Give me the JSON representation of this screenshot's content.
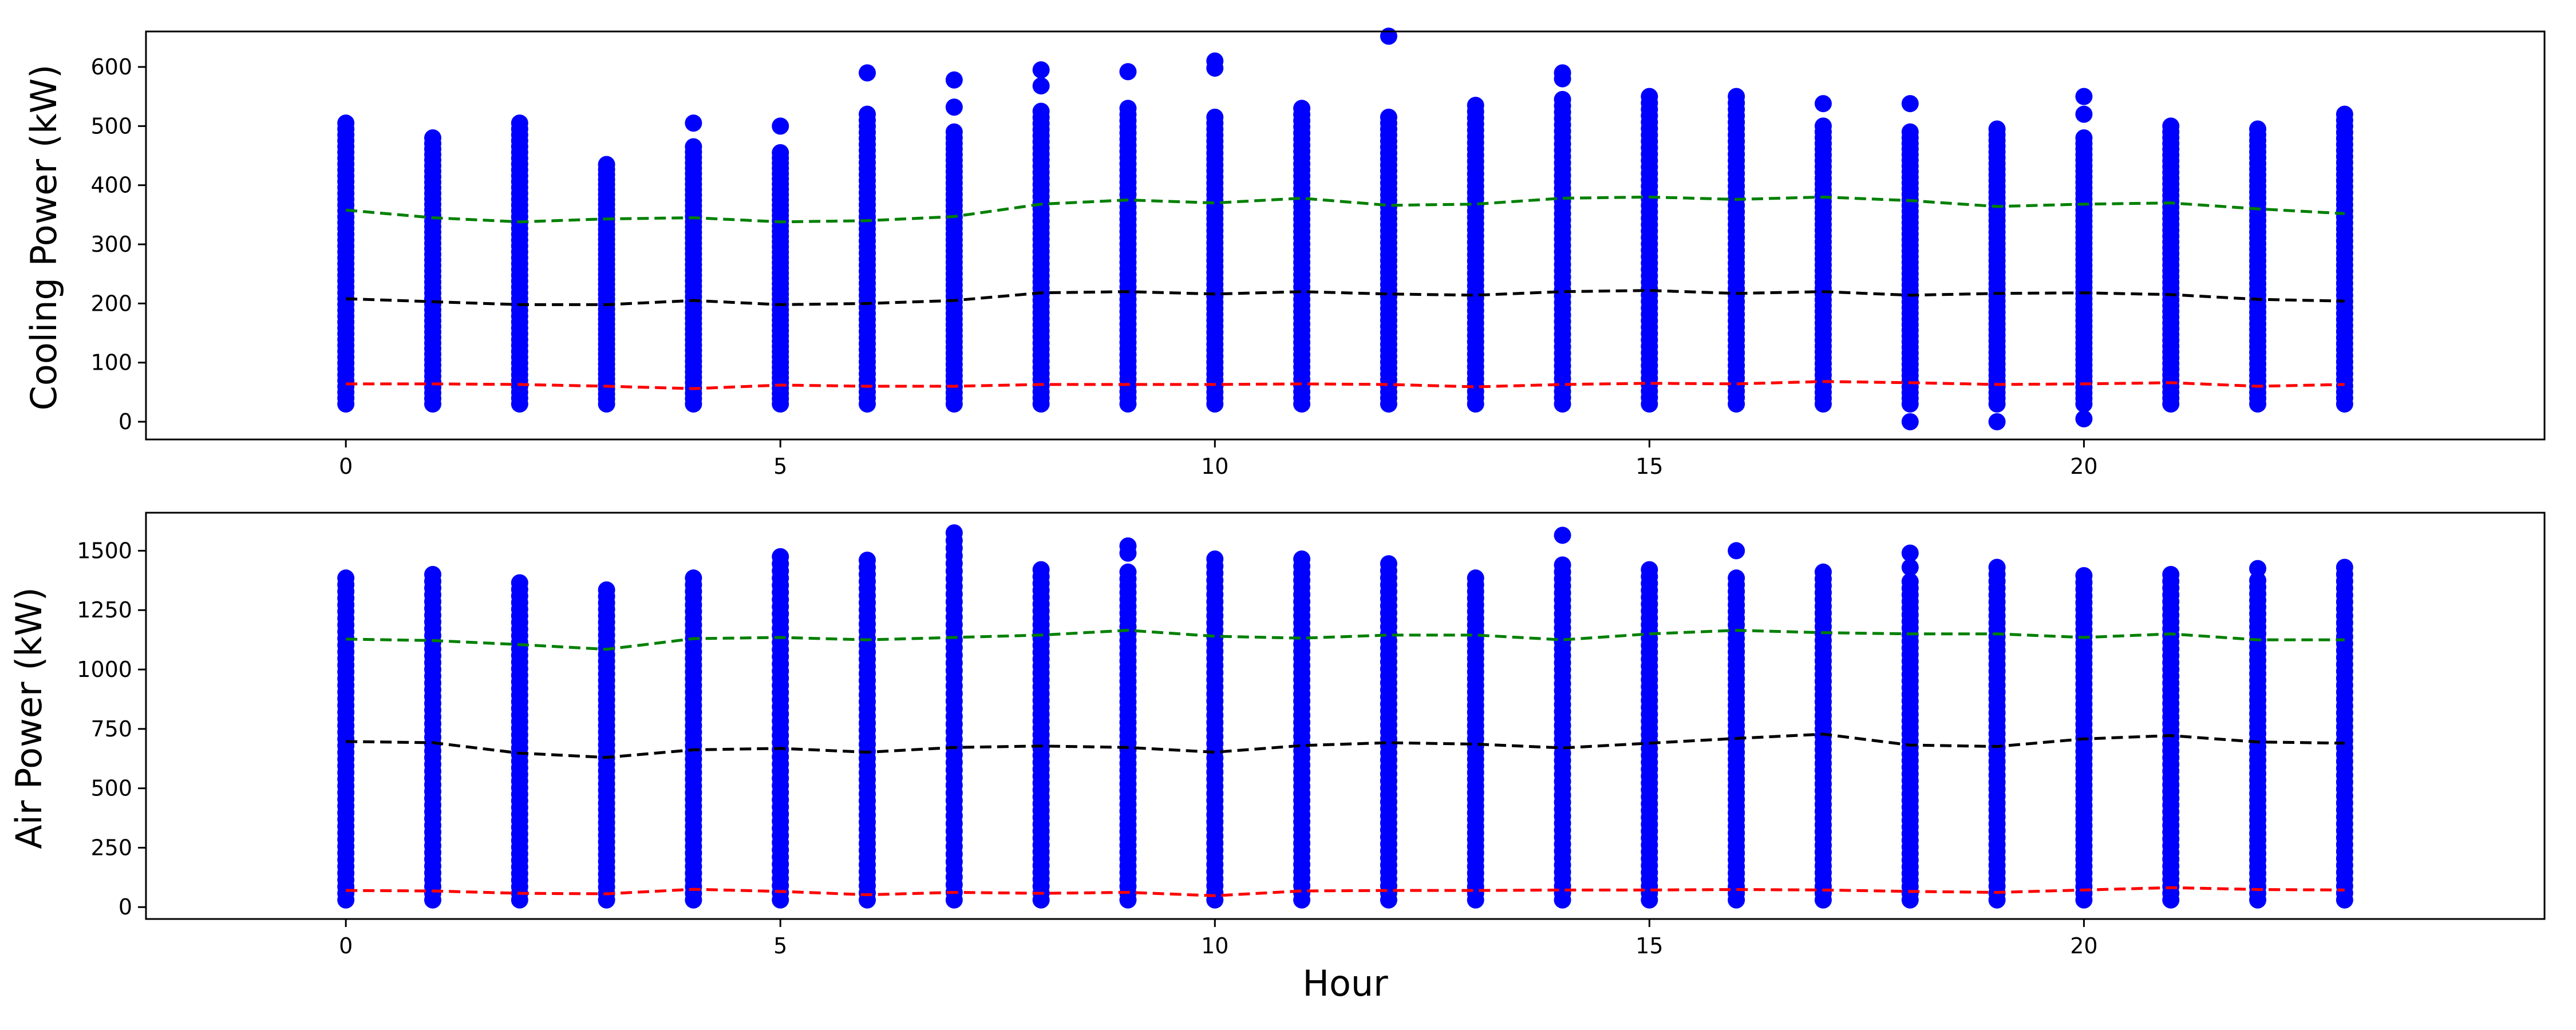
{
  "colors": {
    "points": "#0000ff",
    "upper_line": "#008000",
    "mean_line": "#000000",
    "lower_line": "#ff0000"
  },
  "chart_data": [
    {
      "type": "scatter",
      "title": "",
      "xlabel": "",
      "ylabel": "Cooling Power (kW)",
      "xlim": [
        -2.3,
        25.3
      ],
      "ylim": [
        -30,
        660
      ],
      "xticks": [
        0,
        5,
        10,
        15,
        20
      ],
      "xtick_labels": [
        "0",
        "5",
        "10",
        "15",
        "20"
      ],
      "yticks": [
        0,
        100,
        200,
        300,
        400,
        500,
        600
      ],
      "ytick_labels": [
        "0",
        "100",
        "200",
        "300",
        "400",
        "500",
        "600"
      ],
      "grid": false,
      "hours": [
        0,
        1,
        2,
        3,
        4,
        5,
        6,
        7,
        8,
        9,
        10,
        11,
        12,
        13,
        14,
        15,
        16,
        17,
        18,
        19,
        20,
        21,
        22,
        23
      ],
      "point_ranges": [
        [
          30,
          505
        ],
        [
          30,
          480
        ],
        [
          30,
          505
        ],
        [
          30,
          435
        ],
        [
          30,
          465
        ],
        [
          30,
          455
        ],
        [
          30,
          520
        ],
        [
          30,
          490
        ],
        [
          30,
          525
        ],
        [
          30,
          530
        ],
        [
          30,
          515
        ],
        [
          30,
          530
        ],
        [
          30,
          515
        ],
        [
          30,
          535
        ],
        [
          30,
          545
        ],
        [
          30,
          550
        ],
        [
          30,
          550
        ],
        [
          30,
          500
        ],
        [
          30,
          490
        ],
        [
          30,
          495
        ],
        [
          30,
          480
        ],
        [
          30,
          500
        ],
        [
          30,
          495
        ],
        [
          30,
          520
        ]
      ],
      "outliers": [
        [
          4,
          505
        ],
        [
          5,
          500
        ],
        [
          6,
          590
        ],
        [
          7,
          578
        ],
        [
          7,
          532
        ],
        [
          8,
          595
        ],
        [
          8,
          568
        ],
        [
          9,
          592
        ],
        [
          10,
          610
        ],
        [
          10,
          598
        ],
        [
          12,
          652
        ],
        [
          14,
          590
        ],
        [
          14,
          580
        ],
        [
          17,
          538
        ],
        [
          18,
          538
        ],
        [
          18,
          0
        ],
        [
          19,
          0
        ],
        [
          20,
          550
        ],
        [
          20,
          520
        ],
        [
          20,
          5
        ]
      ],
      "series": [
        {
          "role": "upper",
          "style": "dashed",
          "color": "#008000",
          "values": [
            358,
            345,
            338,
            343,
            345,
            338,
            340,
            347,
            368,
            375,
            370,
            378,
            366,
            368,
            378,
            380,
            376,
            380,
            374,
            364,
            368,
            370,
            360,
            352
          ]
        },
        {
          "role": "mean",
          "style": "dashed",
          "color": "#000000",
          "values": [
            208,
            203,
            198,
            198,
            205,
            198,
            200,
            205,
            218,
            220,
            216,
            220,
            216,
            214,
            220,
            222,
            217,
            220,
            214,
            217,
            218,
            215,
            207,
            204
          ]
        },
        {
          "role": "lower",
          "style": "dashed",
          "color": "#ff0000",
          "values": [
            64,
            64,
            63,
            60,
            56,
            62,
            60,
            60,
            63,
            63,
            63,
            64,
            63,
            59,
            63,
            65,
            64,
            68,
            66,
            63,
            64,
            66,
            60,
            63
          ]
        }
      ]
    },
    {
      "type": "scatter",
      "title": "",
      "xlabel": "Hour",
      "ylabel": "Air Power (kW)",
      "xlim": [
        -2.3,
        25.3
      ],
      "ylim": [
        -50,
        1660
      ],
      "xticks": [
        0,
        5,
        10,
        15,
        20
      ],
      "xtick_labels": [
        "0",
        "5",
        "10",
        "15",
        "20"
      ],
      "yticks": [
        0,
        250,
        500,
        750,
        1000,
        1250,
        1500
      ],
      "ytick_labels": [
        "0",
        "250",
        "500",
        "750",
        "1000",
        "1250",
        "1500"
      ],
      "grid": false,
      "hours": [
        0,
        1,
        2,
        3,
        4,
        5,
        6,
        7,
        8,
        9,
        10,
        11,
        12,
        13,
        14,
        15,
        16,
        17,
        18,
        19,
        20,
        21,
        22,
        23
      ],
      "point_ranges": [
        [
          30,
          1385
        ],
        [
          30,
          1400
        ],
        [
          30,
          1365
        ],
        [
          30,
          1335
        ],
        [
          30,
          1385
        ],
        [
          30,
          1475
        ],
        [
          30,
          1460
        ],
        [
          30,
          1575
        ],
        [
          30,
          1420
        ],
        [
          30,
          1410
        ],
        [
          30,
          1465
        ],
        [
          30,
          1465
        ],
        [
          30,
          1445
        ],
        [
          30,
          1385
        ],
        [
          30,
          1440
        ],
        [
          30,
          1420
        ],
        [
          30,
          1385
        ],
        [
          30,
          1410
        ],
        [
          30,
          1370
        ],
        [
          30,
          1430
        ],
        [
          30,
          1395
        ],
        [
          30,
          1400
        ],
        [
          30,
          1375
        ],
        [
          30,
          1430
        ]
      ],
      "outliers": [
        [
          9,
          1520
        ],
        [
          9,
          1490
        ],
        [
          14,
          1565
        ],
        [
          16,
          1500
        ],
        [
          18,
          1490
        ],
        [
          18,
          1430
        ],
        [
          22,
          1425
        ]
      ],
      "series": [
        {
          "role": "upper",
          "style": "dashed",
          "color": "#008000",
          "values": [
            1128,
            1122,
            1105,
            1085,
            1130,
            1135,
            1125,
            1135,
            1145,
            1165,
            1140,
            1132,
            1145,
            1145,
            1125,
            1150,
            1165,
            1155,
            1150,
            1150,
            1135,
            1150,
            1125,
            1125
          ]
        },
        {
          "role": "mean",
          "style": "dashed",
          "color": "#000000",
          "values": [
            697,
            692,
            648,
            630,
            662,
            668,
            652,
            672,
            678,
            672,
            652,
            680,
            692,
            686,
            670,
            690,
            710,
            728,
            682,
            676,
            708,
            722,
            695,
            690
          ]
        },
        {
          "role": "lower",
          "style": "dashed",
          "color": "#ff0000",
          "values": [
            70,
            68,
            58,
            56,
            75,
            66,
            52,
            62,
            58,
            62,
            48,
            68,
            70,
            70,
            72,
            72,
            74,
            72,
            66,
            62,
            72,
            82,
            74,
            72
          ]
        }
      ]
    }
  ]
}
